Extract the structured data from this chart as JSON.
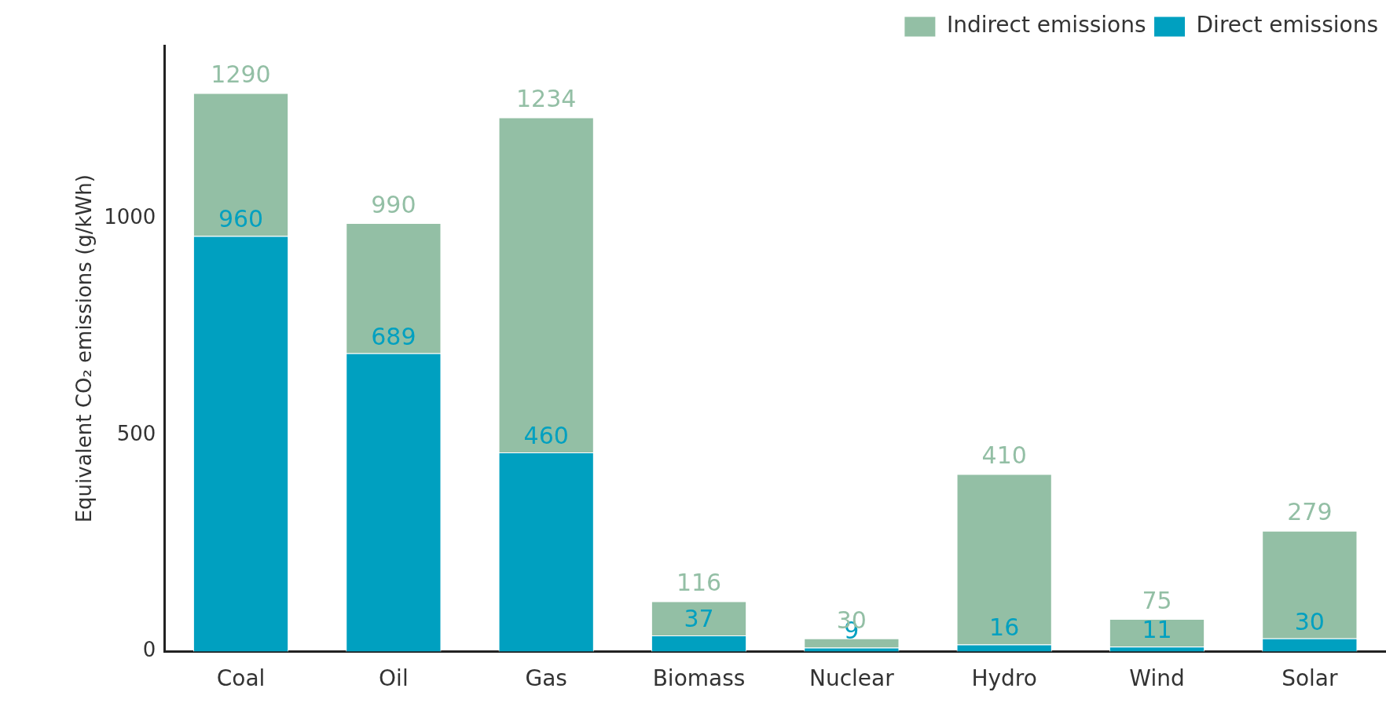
{
  "chart_data": {
    "type": "bar",
    "stacked": true,
    "ylabel": "Equivalent CO₂ emissions (g/kWh)",
    "categories": [
      "Coal",
      "Oil",
      "Gas",
      "Biomass",
      "Nuclear",
      "Hydro",
      "Wind",
      "Solar"
    ],
    "series": [
      {
        "name": "Direct emissions",
        "color": "#00a0c0",
        "values": [
          960,
          689,
          460,
          37,
          9,
          16,
          11,
          30
        ],
        "value_labels": [
          "960",
          "689",
          "460",
          "37",
          "9",
          "16",
          "11",
          "30"
        ]
      },
      {
        "name": "Indirect emissions",
        "color": "#93bfa5",
        "values": [
          330,
          301,
          774,
          79,
          21,
          394,
          64,
          249
        ]
      }
    ],
    "totals": [
      "1290",
      "990",
      "1234",
      "116",
      "30",
      "410",
      "75",
      "279"
    ],
    "ylim": [
      0,
      1400
    ],
    "yticks": [
      0,
      500,
      1000
    ],
    "grid": false,
    "legend": "top right"
  }
}
